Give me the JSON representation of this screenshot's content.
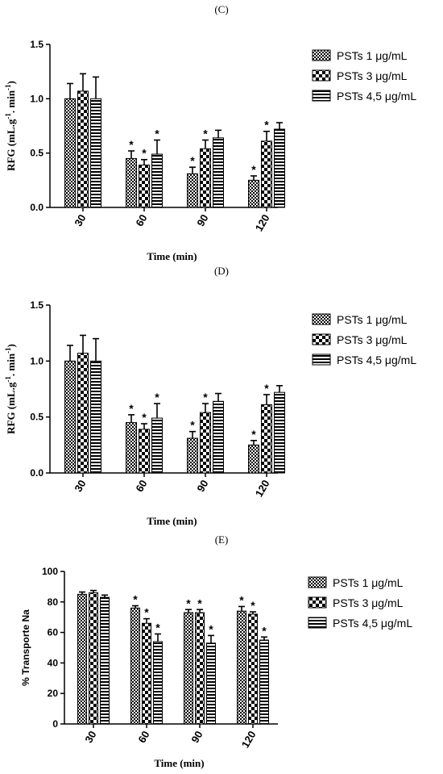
{
  "panels": [
    {
      "label": "(C)"
    },
    {
      "label": "(D)"
    },
    {
      "label": "(E)"
    }
  ],
  "colors": {
    "bar_fill": "#ffffff",
    "bar_pattern": "#000000",
    "axis": "#000000"
  },
  "chart_data": [
    {
      "type": "bar",
      "categories": [
        "30",
        "60",
        "90",
        "120"
      ],
      "xlabel": "Time (min)",
      "ylabel": "RFG (mL.g⁻¹. min⁻¹)",
      "ylim": [
        0,
        1.5
      ],
      "yticks": [
        "0.0",
        "0.5",
        "1.0",
        "1.5"
      ],
      "legend_position": "right",
      "series": [
        {
          "name": "PSTs 1 μg/mL",
          "pattern": "checker-fine",
          "values": [
            1.0,
            0.45,
            0.31,
            0.25
          ],
          "errors": [
            0.14,
            0.07,
            0.06,
            0.04
          ],
          "significant": [
            false,
            true,
            true,
            true
          ]
        },
        {
          "name": "PSTs 3 μg/mL",
          "pattern": "checker-coarse",
          "values": [
            1.07,
            0.39,
            0.54,
            0.61
          ],
          "errors": [
            0.16,
            0.05,
            0.08,
            0.09
          ],
          "significant": [
            false,
            true,
            true,
            true
          ]
        },
        {
          "name": "PSTs 4,5 μg/mL",
          "pattern": "horizontal-lines",
          "values": [
            1.0,
            0.49,
            0.64,
            0.72
          ],
          "errors": [
            0.2,
            0.13,
            0.07,
            0.06
          ],
          "significant": [
            false,
            true,
            false,
            false
          ]
        }
      ],
      "significance_marker": "*"
    },
    {
      "type": "bar",
      "categories": [
        "30",
        "60",
        "90",
        "120"
      ],
      "xlabel": "Time (min)",
      "ylabel": "RFG (mL.g⁻¹. min⁻¹)",
      "ylim": [
        0,
        1.5
      ],
      "yticks": [
        "0.0",
        "0.5",
        "1.0",
        "1.5"
      ],
      "legend_position": "right",
      "series": [
        {
          "name": "PSTs 1 μg/mL",
          "pattern": "checker-fine",
          "values": [
            1.0,
            0.45,
            0.31,
            0.25
          ],
          "errors": [
            0.14,
            0.07,
            0.06,
            0.04
          ],
          "significant": [
            false,
            true,
            true,
            true
          ]
        },
        {
          "name": "PSTs 3 μg/mL",
          "pattern": "checker-coarse",
          "values": [
            1.07,
            0.39,
            0.54,
            0.61
          ],
          "errors": [
            0.16,
            0.05,
            0.08,
            0.09
          ],
          "significant": [
            false,
            true,
            true,
            true
          ]
        },
        {
          "name": "PSTs 4,5 μg/mL",
          "pattern": "horizontal-lines",
          "values": [
            1.0,
            0.49,
            0.64,
            0.72
          ],
          "errors": [
            0.2,
            0.13,
            0.07,
            0.06
          ],
          "significant": [
            false,
            true,
            false,
            false
          ]
        }
      ],
      "significance_marker": "*"
    },
    {
      "type": "bar",
      "categories": [
        "30",
        "60",
        "90",
        "120"
      ],
      "xlabel": "Time (min)",
      "ylabel": "% Transporte Na",
      "ylim": [
        0,
        100
      ],
      "yticks": [
        "0",
        "20",
        "40",
        "60",
        "80",
        "100"
      ],
      "legend_position": "right",
      "series": [
        {
          "name": "PSTs 1 μg/mL",
          "pattern": "checker-fine",
          "values": [
            85,
            76,
            73,
            74
          ],
          "errors": [
            1.5,
            1.5,
            2,
            3
          ],
          "significant": [
            false,
            true,
            true,
            true
          ]
        },
        {
          "name": "PSTs 3 μg/mL",
          "pattern": "checker-coarse",
          "values": [
            86,
            66,
            73,
            72
          ],
          "errors": [
            1.5,
            3,
            2,
            1.5
          ],
          "significant": [
            false,
            true,
            true,
            true
          ]
        },
        {
          "name": "PSTs 4,5 μg/mL",
          "pattern": "horizontal-lines",
          "values": [
            83,
            54,
            53,
            55
          ],
          "errors": [
            1.5,
            5,
            5,
            2
          ],
          "significant": [
            false,
            true,
            true,
            true
          ]
        }
      ],
      "significance_marker": "*"
    }
  ]
}
